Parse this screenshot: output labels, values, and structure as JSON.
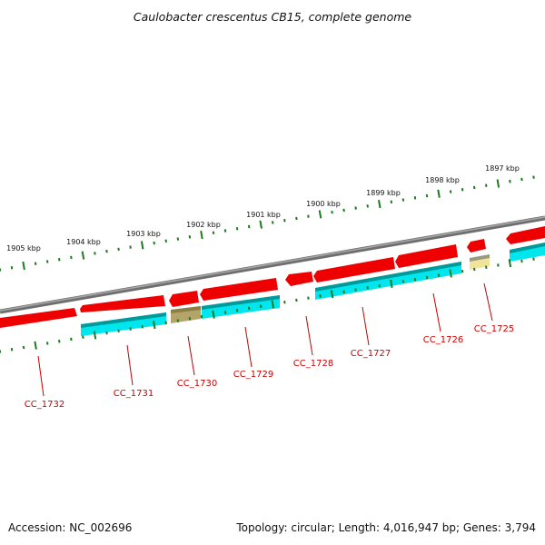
{
  "title": "Caulobacter crescentus CB15, complete genome",
  "footer": {
    "accession": "Accession: NC_002696",
    "summary": "Topology: circular; Length: 4,016,947 bp; Genes: 3,794"
  },
  "colors": {
    "backbone": "#7a7a7a",
    "tick": "#1e7a1e",
    "cds_forward": "#ee0000",
    "cds_reverse": "#00e6ee",
    "cds_reverse_shade": "#009a9a",
    "gene_olive": "#b3a56a",
    "gene_khaki": "#efe49a",
    "label": "#cc0000"
  },
  "scale": {
    "kbp_labels": [
      "1905 kbp",
      "1904 kbp",
      "1903 kbp",
      "1902 kbp",
      "1901 kbp",
      "1900 kbp",
      "1899 kbp",
      "1898 kbp",
      "1897 kbp"
    ]
  },
  "genes": [
    {
      "name": "CC_1732"
    },
    {
      "name": "CC_1731"
    },
    {
      "name": "CC_1730"
    },
    {
      "name": "CC_1729"
    },
    {
      "name": "CC_1728"
    },
    {
      "name": "CC_1727"
    },
    {
      "name": "CC_1726"
    },
    {
      "name": "CC_1725"
    }
  ]
}
